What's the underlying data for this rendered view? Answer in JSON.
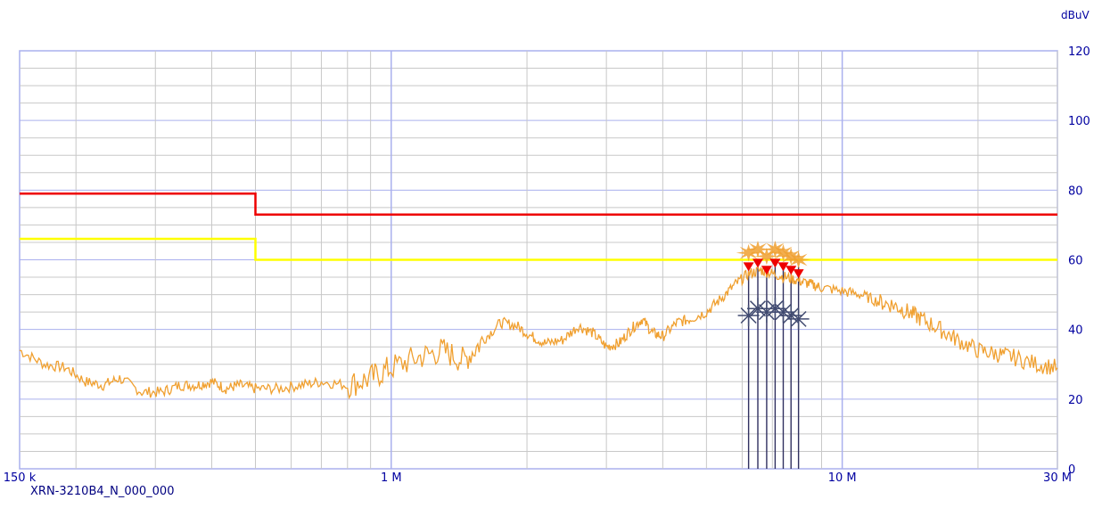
{
  "chart_data": {
    "type": "line",
    "ylabel": "dBuV",
    "xscale": "log",
    "xlim": [
      150000,
      30000000
    ],
    "ylim": [
      0,
      120
    ],
    "x_ticks": [
      {
        "value": 150000,
        "label": "150 k"
      },
      {
        "value": 1000000,
        "label": "1 M"
      },
      {
        "value": 10000000,
        "label": "10 M"
      },
      {
        "value": 30000000,
        "label": "30 M"
      }
    ],
    "y_ticks": [
      0,
      20,
      40,
      60,
      80,
      100,
      120
    ],
    "grid": true,
    "colors": {
      "grid": "#aab0ee",
      "trace": "#f0a030",
      "limit_qp": "#ee0000",
      "limit_avg": "#ffff00",
      "peak_marker": "#ee0000",
      "asterisk_marker": "#404a70",
      "stem": "#303060",
      "tick_text": "#0000a0"
    },
    "limits": [
      {
        "points": [
          [
            150000,
            79
          ],
          [
            500000,
            79
          ],
          [
            500000,
            73
          ],
          [
            30000000,
            73
          ]
        ]
      },
      {
        "points": [
          [
            150000,
            66
          ],
          [
            500000,
            66
          ],
          [
            500000,
            60
          ],
          [
            30000000,
            60
          ]
        ]
      }
    ],
    "series": [
      {
        "x": [
          150000,
          170000,
          190000,
          210000,
          230000,
          250000,
          280000,
          310000,
          340000,
          370000,
          400000,
          430000,
          460000,
          500000,
          560000,
          630000,
          700000,
          800000,
          900000,
          1000000,
          1150000,
          1300000,
          1450000,
          1600000,
          1750000,
          1900000,
          2050000,
          2200000,
          2400000,
          2600000,
          2800000,
          3000000,
          3200000,
          3400000,
          3600000,
          3800000,
          4000000,
          4300000,
          4600000,
          5000000,
          5400000,
          5800000,
          6200000,
          6600000,
          7000000,
          7500000,
          8000000,
          8500000,
          9000000,
          10000000,
          11000000,
          12000000,
          13000000,
          14000000,
          15000000,
          16500000,
          18000000,
          20000000,
          22000000,
          24000000,
          27000000,
          30000000
        ],
        "y": [
          34,
          30,
          29,
          25,
          24,
          26,
          22,
          22,
          24,
          24,
          25,
          23,
          24,
          23,
          23,
          24,
          25,
          24,
          26,
          29,
          32,
          34,
          31,
          37,
          42,
          41,
          38,
          36,
          37,
          41,
          39,
          35,
          36,
          40,
          43,
          39,
          38,
          42,
          43,
          45,
          49,
          53,
          56,
          57,
          56,
          55,
          54,
          53,
          52,
          51,
          50,
          48,
          47,
          45,
          43,
          40,
          37,
          34,
          33,
          32,
          30,
          29
        ]
      }
    ],
    "peak_markers": {
      "x": [
        6200000,
        6500000,
        6800000,
        7100000,
        7400000,
        7700000,
        8000000
      ],
      "y": [
        58,
        59,
        57,
        59,
        58,
        57,
        56
      ]
    },
    "asterisk_markers": {
      "x": [
        6200000,
        6500000,
        6800000,
        7100000,
        7400000,
        7700000,
        8000000
      ],
      "y": [
        44,
        46,
        45,
        46,
        45,
        44,
        43
      ]
    }
  },
  "footer": "XRN-3210B4_N_000_000"
}
